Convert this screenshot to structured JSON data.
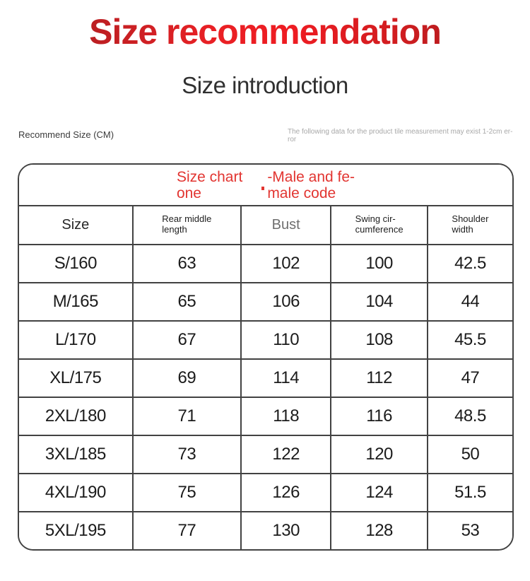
{
  "page": {
    "title": "Size recommendation",
    "subtitle": "Size introduction",
    "left_note": "Recommend Size (CM)",
    "disclaimer_lines": [
      "The following data for the product tile measurement may exist 1-2cm er-",
      "ror"
    ]
  },
  "table": {
    "caption": {
      "left_lines": [
        "Size chart",
        "one"
      ],
      "right_lines": [
        "-Male and fe-",
        "male code"
      ]
    },
    "columns": [
      {
        "id": "size",
        "lines": [
          "Size"
        ],
        "style": "large-dark"
      },
      {
        "id": "rear-middle-length",
        "lines": [
          "Rear middle",
          "length"
        ],
        "style": "small"
      },
      {
        "id": "bust",
        "lines": [
          "Bust"
        ],
        "style": "large-gray"
      },
      {
        "id": "swing-circumference",
        "lines": [
          "Swing cir-",
          "cumference"
        ],
        "style": "small"
      },
      {
        "id": "shoulder-width",
        "lines": [
          "Shoulder",
          "width"
        ],
        "style": "small"
      }
    ],
    "rows": [
      [
        "S/160",
        "63",
        "102",
        "100",
        "42.5"
      ],
      [
        "M/165",
        "65",
        "106",
        "104",
        "44"
      ],
      [
        "L/170",
        "67",
        "110",
        "108",
        "45.5"
      ],
      [
        "XL/175",
        "69",
        "114",
        "112",
        "47"
      ],
      [
        "2XL/180",
        "71",
        "118",
        "116",
        "48.5"
      ],
      [
        "3XL/185",
        "73",
        "122",
        "120",
        "50"
      ],
      [
        "4XL/190",
        "75",
        "126",
        "124",
        "51.5"
      ],
      [
        "5XL/195",
        "77",
        "130",
        "128",
        "53"
      ]
    ]
  },
  "chart_data": {
    "type": "table",
    "title": "Size chart one - Male and female code",
    "unit": "CM",
    "columns": [
      "Size",
      "Rear middle length",
      "Bust",
      "Swing circumference",
      "Shoulder width"
    ],
    "rows": [
      [
        "S/160",
        63,
        102,
        100,
        42.5
      ],
      [
        "M/165",
        65,
        106,
        104,
        44
      ],
      [
        "L/170",
        67,
        110,
        108,
        45.5
      ],
      [
        "XL/175",
        69,
        114,
        112,
        47
      ],
      [
        "2XL/180",
        71,
        118,
        116,
        48.5
      ],
      [
        "3XL/185",
        73,
        122,
        120,
        50
      ],
      [
        "4XL/190",
        75,
        126,
        124,
        51.5
      ],
      [
        "5XL/195",
        77,
        130,
        128,
        53
      ]
    ]
  },
  "colors": {
    "title_red_dark": "#8a1e22",
    "title_red_bright": "#ee2024",
    "caption_red": "#e23531",
    "table_border": "#424242",
    "subtitle_text": "#303030",
    "disclaimer_gray": "#a8a8a8"
  }
}
